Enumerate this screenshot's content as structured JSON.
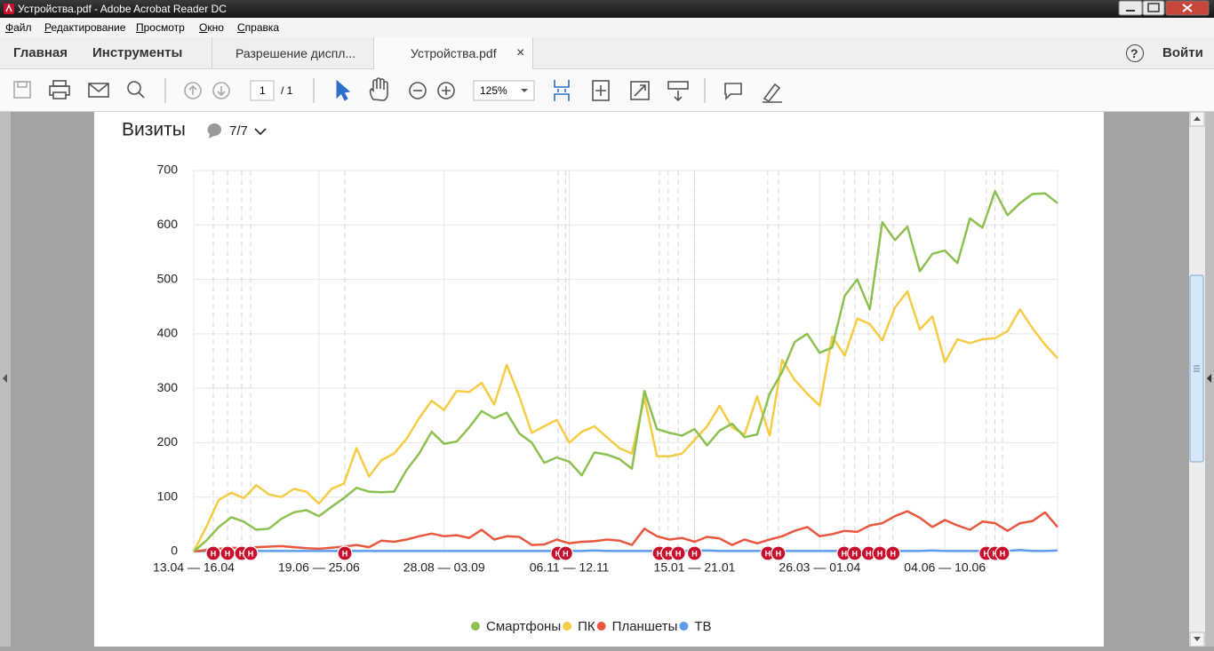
{
  "window": {
    "title": "Устройства.pdf - Adobe Acrobat Reader DC"
  },
  "menu": [
    "Файл",
    "Редактирование",
    "Просмотр",
    "Окно",
    "Справка"
  ],
  "tabs": {
    "home": "Главная",
    "tools": "Инструменты",
    "documents": [
      "Разрешение диспл...",
      "Устройства.pdf"
    ],
    "close": "×",
    "help": "?",
    "signin": "Войти"
  },
  "toolbar": {
    "page": "1",
    "page_total": "/ 1",
    "zoom": "125%"
  },
  "document": {
    "comments": "7/7"
  },
  "chart_data": {
    "type": "line",
    "title": "Визиты",
    "categories": [
      "13.04 — 16.04",
      null,
      null,
      null,
      null,
      null,
      null,
      null,
      null,
      null,
      "19.06 — 25.06",
      null,
      null,
      null,
      null,
      null,
      null,
      null,
      null,
      null,
      "28.08 — 03.09",
      null,
      null,
      null,
      null,
      null,
      null,
      null,
      null,
      null,
      "06.11 — 12.11",
      null,
      null,
      null,
      null,
      null,
      null,
      null,
      null,
      null,
      "15.01 — 21.01",
      null,
      null,
      null,
      null,
      null,
      null,
      null,
      null,
      null,
      "26.03 — 01.04",
      null,
      null,
      null,
      null,
      null,
      null,
      null,
      null,
      null,
      "04.06 — 10.06",
      null,
      null,
      null,
      null,
      null,
      null,
      null,
      null,
      null
    ],
    "ylim": [
      0,
      700
    ],
    "yticks": [
      0,
      100,
      200,
      300,
      400,
      500,
      600,
      700
    ],
    "grid": true,
    "legend": "bottom",
    "series": [
      {
        "name": "Смартфоны",
        "color": "#8cc152",
        "values": [
          0,
          20,
          45,
          63,
          55,
          40,
          42,
          60,
          72,
          76,
          65,
          82,
          98,
          117,
          110,
          109,
          110,
          150,
          180,
          220,
          198,
          202,
          228,
          258,
          245,
          255,
          217,
          200,
          163,
          173,
          165,
          140,
          182,
          178,
          170,
          152,
          295,
          225,
          218,
          213,
          225,
          195,
          222,
          235,
          210,
          215,
          290,
          330,
          385,
          400,
          365,
          375,
          470,
          500,
          445,
          605,
          572,
          597,
          515,
          547,
          553,
          530,
          612,
          595,
          662,
          618,
          640,
          657,
          658,
          640
        ]
      },
      {
        "name": "ПК",
        "color": "#f6cb45",
        "values": [
          0,
          45,
          95,
          108,
          98,
          122,
          105,
          100,
          115,
          110,
          88,
          115,
          125,
          190,
          138,
          168,
          180,
          207,
          245,
          277,
          260,
          295,
          293,
          310,
          270,
          343,
          285,
          218,
          230,
          242,
          200,
          220,
          230,
          210,
          190,
          180,
          283,
          175,
          175,
          180,
          205,
          230,
          268,
          228,
          215,
          285,
          213,
          352,
          315,
          290,
          268,
          395,
          360,
          428,
          418,
          388,
          448,
          478,
          408,
          432,
          348,
          390,
          383,
          390,
          392,
          405,
          445,
          410,
          380,
          355
        ]
      },
      {
        "name": "Планшеты",
        "color": "#e9573f",
        "values": [
          0,
          3,
          5,
          7,
          6,
          8,
          9,
          10,
          8,
          6,
          5,
          7,
          9,
          12,
          8,
          20,
          18,
          22,
          28,
          33,
          28,
          30,
          25,
          40,
          22,
          28,
          27,
          12,
          13,
          22,
          15,
          18,
          19,
          22,
          20,
          12,
          42,
          28,
          22,
          25,
          18,
          27,
          24,
          12,
          22,
          15,
          22,
          28,
          38,
          45,
          28,
          32,
          38,
          36,
          48,
          52,
          65,
          74,
          62,
          45,
          58,
          48,
          40,
          55,
          52,
          38,
          52,
          56,
          72,
          45
        ]
      },
      {
        "name": "ТВ",
        "color": "#5d9cec",
        "values": [
          0,
          1,
          1,
          1,
          1,
          1,
          1,
          1,
          1,
          1,
          1,
          1,
          1,
          1,
          1,
          1,
          1,
          1,
          1,
          1,
          1,
          1,
          1,
          1,
          1,
          1,
          1,
          1,
          1,
          1,
          1,
          1,
          2,
          1,
          1,
          1,
          1,
          1,
          1,
          1,
          1,
          2,
          1,
          1,
          1,
          1,
          1,
          1,
          1,
          1,
          1,
          1,
          1,
          2,
          1,
          1,
          1,
          1,
          1,
          2,
          1,
          1,
          1,
          1,
          1,
          1,
          3,
          1,
          1,
          2
        ]
      }
    ],
    "annotations": [
      {
        "x": 1.56,
        "label": "Н"
      },
      {
        "x": 2.7,
        "label": "Н"
      },
      {
        "x": 3.83,
        "label": "Н"
      },
      {
        "x": 4.54,
        "label": "Н"
      },
      {
        "x": 12.07,
        "label": "Н"
      },
      {
        "x": 29.1,
        "label": "Н"
      },
      {
        "x": 29.7,
        "label": "Н"
      },
      {
        "x": 37.2,
        "label": "Н"
      },
      {
        "x": 37.9,
        "label": "Н"
      },
      {
        "x": 38.7,
        "label": "Н"
      },
      {
        "x": 40.0,
        "label": "Н"
      },
      {
        "x": 45.85,
        "label": "Н"
      },
      {
        "x": 46.7,
        "label": "Н"
      },
      {
        "x": 51.95,
        "label": "Н"
      },
      {
        "x": 52.8,
        "label": "Н"
      },
      {
        "x": 53.9,
        "label": "Н"
      },
      {
        "x": 54.8,
        "label": "Н"
      },
      {
        "x": 55.85,
        "label": "Н"
      },
      {
        "x": 63.3,
        "label": "Н"
      },
      {
        "x": 64.0,
        "label": "Н"
      },
      {
        "x": 64.6,
        "label": "Н"
      }
    ]
  }
}
